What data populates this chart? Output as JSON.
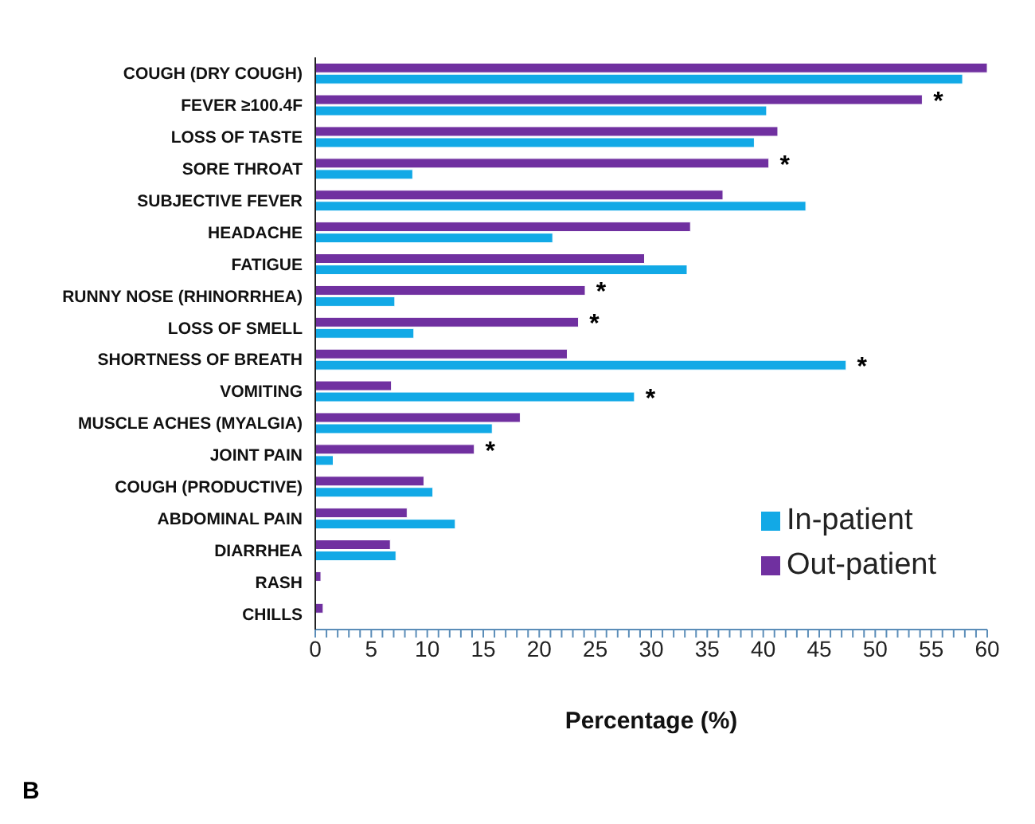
{
  "chart_data": {
    "type": "bar",
    "orientation": "horizontal",
    "xlabel": "Percentage (%)",
    "categories": [
      "COUGH (DRY COUGH)",
      "FEVER ≥100.4F",
      "LOSS OF TASTE",
      "SORE THROAT",
      "SUBJECTIVE FEVER",
      "HEADACHE",
      "FATIGUE",
      "RUNNY NOSE (RHINORRHEA)",
      "LOSS OF SMELL",
      "SHORTNESS OF BREATH",
      "VOMITING",
      "MUSCLE ACHES (MYALGIA)",
      "JOINT PAIN",
      "COUGH (PRODUCTIVE)",
      "ABDOMINAL PAIN",
      "DIARRHEA",
      "RASH",
      "CHILLS"
    ],
    "series": [
      {
        "name": "Out-patient",
        "color": "#7030a0",
        "values": [
          60,
          54.2,
          41.3,
          40.5,
          36.4,
          33.5,
          29.4,
          24.1,
          23.5,
          22.5,
          6.8,
          18.3,
          14.2,
          9.7,
          8.2,
          6.7,
          0.5,
          0.7
        ]
      },
      {
        "name": "In-patient",
        "color": "#12a9e6",
        "values": [
          57.8,
          40.3,
          39.2,
          8.7,
          43.8,
          21.2,
          33.2,
          7.1,
          8.8,
          47.4,
          28.5,
          15.8,
          1.6,
          10.5,
          12.5,
          7.2,
          0,
          0
        ]
      }
    ],
    "xlim": [
      0,
      60
    ],
    "xticks": [
      0,
      {
        "value": 1,
        "label": null
      },
      {
        "value": 2,
        "label": null
      },
      {
        "value": 3,
        "label": null
      },
      {
        "value": 4,
        "label": null
      },
      5,
      {
        "value": 6,
        "label": null
      },
      {
        "value": 7,
        "label": null
      },
      {
        "value": 8,
        "label": null
      },
      {
        "value": 9,
        "label": null
      },
      10,
      {
        "value": 11,
        "label": null
      },
      {
        "value": 12,
        "label": null
      },
      {
        "value": 13,
        "label": null
      },
      {
        "value": 14,
        "label": null
      },
      15,
      {
        "value": 16,
        "label": null
      },
      {
        "value": 17,
        "label": null
      },
      {
        "value": 18,
        "label": null
      },
      {
        "value": 19,
        "label": null
      },
      20,
      {
        "value": 21,
        "label": null
      },
      {
        "value": 22,
        "label": null
      },
      {
        "value": 23,
        "label": null
      },
      {
        "value": 24,
        "label": null
      },
      25,
      {
        "value": 26,
        "label": null
      },
      {
        "value": 27,
        "label": null
      },
      {
        "value": 28,
        "label": null
      },
      {
        "value": 29,
        "label": null
      },
      30,
      {
        "value": 31,
        "label": null
      },
      {
        "value": 32,
        "label": null
      },
      {
        "value": 33,
        "label": null
      },
      {
        "value": 34,
        "label": null
      },
      35,
      {
        "value": 36,
        "label": null
      },
      {
        "value": 37,
        "label": null
      },
      {
        "value": 38,
        "label": null
      },
      {
        "value": 39,
        "label": null
      },
      40,
      {
        "value": 41,
        "label": null
      },
      {
        "value": 42,
        "label": null
      },
      {
        "value": 43,
        "label": null
      },
      {
        "value": 44,
        "label": null
      },
      45,
      {
        "value": 46,
        "label": null
      },
      {
        "value": 47,
        "label": null
      },
      {
        "value": 48,
        "label": null
      },
      {
        "value": 49,
        "label": null
      },
      50,
      {
        "value": 51,
        "label": null
      },
      {
        "value": 52,
        "label": null
      },
      {
        "value": 53,
        "label": null
      },
      {
        "value": 54,
        "label": null
      },
      55,
      {
        "value": 56,
        "label": null
      },
      {
        "value": 57,
        "label": null
      },
      {
        "value": 58,
        "label": null
      },
      {
        "value": 59,
        "label": null
      },
      60
    ],
    "annotations": [
      {
        "text": "*",
        "x": 54.2,
        "y": "FEVER ≥100.4F"
      },
      {
        "text": "*",
        "x": 40.5,
        "y": "SORE THROAT"
      },
      {
        "text": "*",
        "x": 24.1,
        "y": "RUNNY NOSE (RHINORRHEA)"
      },
      {
        "text": "*",
        "x": 23.5,
        "y": "LOSS OF SMELL"
      },
      {
        "text": "*",
        "x": 47.4,
        "y": "SHORTNESS OF BREATH"
      },
      {
        "text": "*",
        "x": 28.5,
        "y": "VOMITING"
      },
      {
        "text": "*",
        "x": 14.2,
        "y": "JOINT PAIN"
      },
      "B"
    ],
    "grid": false,
    "legend": "bottom right"
  }
}
